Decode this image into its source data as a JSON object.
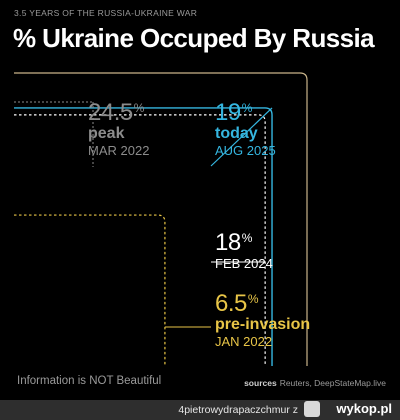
{
  "header": {
    "kicker": "3.5 YEARS OF THE RUSSIA-UKRAINE WAR",
    "title": "% Ukraine Occuped By Russia"
  },
  "chart_data": {
    "type": "area",
    "title": "% Ukraine Occuped By Russia",
    "unit": "%",
    "points": [
      {
        "key": "peak",
        "value": 24.5,
        "display": "24.5",
        "label": "peak",
        "date": "MAR 2022",
        "color": "#8c8c8c"
      },
      {
        "key": "today",
        "value": 19,
        "display": "19",
        "label": "today",
        "date": "AUG 2025",
        "color": "#35b6e0"
      },
      {
        "key": "feb2024",
        "value": 18,
        "display": "18",
        "label": "",
        "date": "FEB 2024",
        "color": "#ffffff"
      },
      {
        "key": "preinvasion",
        "value": 6.5,
        "display": "6.5",
        "label": "pre-invasion",
        "date": "JAN 2022",
        "color": "#e8c547"
      }
    ]
  },
  "footer": {
    "left": "Information is NOT Beautiful",
    "sources_label": "sources",
    "sources": "Reuters, DeepStateMap.live"
  },
  "watermark": {
    "user": "4pietrowydrapaczchmur z",
    "logo": "wykop.pl"
  },
  "colors": {
    "frame": "#c9b48a",
    "peak": "#8c8c8c",
    "today": "#35b6e0",
    "feb2024": "#ffffff",
    "preinvasion": "#e8c547"
  }
}
